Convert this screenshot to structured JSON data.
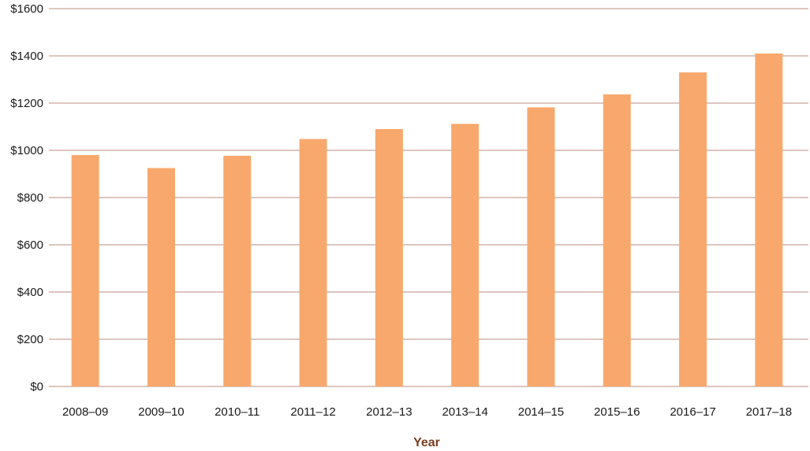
{
  "chart_data": {
    "type": "bar",
    "title": "",
    "xlabel": "Year",
    "ylabel": "",
    "ylim": [
      0,
      1600
    ],
    "y_ticks": [
      0,
      200,
      400,
      600,
      800,
      1000,
      1200,
      1400,
      1600
    ],
    "y_tick_labels": [
      "$0",
      "$200",
      "$400",
      "$600",
      "$800",
      "$1000",
      "$1200",
      "$1400",
      "$1600"
    ],
    "grid": true,
    "categories": [
      "2008–09",
      "2009–10",
      "2010–11",
      "2011–12",
      "2012–13",
      "2013–14",
      "2014–15",
      "2015–16",
      "2016–17",
      "2017–18"
    ],
    "values": [
      980,
      925,
      977,
      1048,
      1090,
      1112,
      1182,
      1237,
      1330,
      1410
    ],
    "colors": {
      "bar": "#f8a86d",
      "grid": "#c9a49a",
      "axis_title": "#7a3f23"
    }
  }
}
